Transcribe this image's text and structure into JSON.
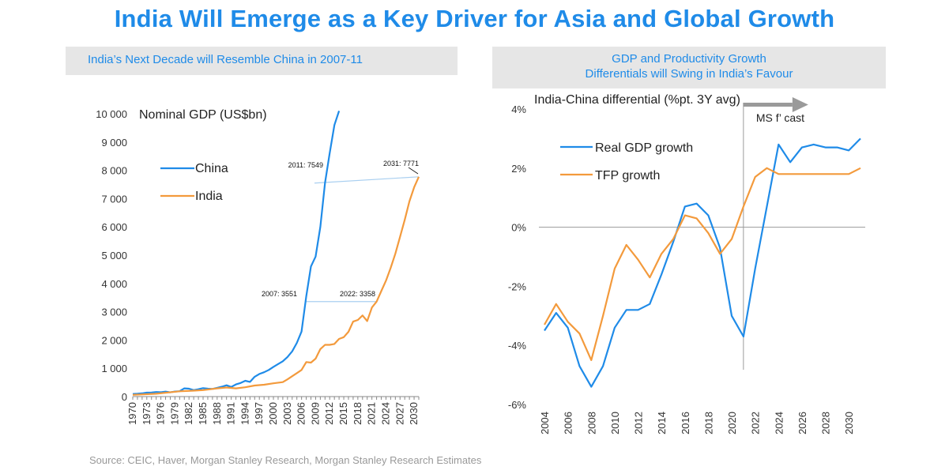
{
  "title": "India Will Emerge as a Key Driver for Asia and Global Growth",
  "left_panel": {
    "header": "India’s Next Decade will Resemble China in 2007-11"
  },
  "right_panel": {
    "header_line1": "GDP and Productivity Growth",
    "header_line2": "Differentials will Swing in India’s Favour"
  },
  "source": "Source: CEIC, Haver, Morgan Stanley Research, Morgan Stanley Research Estimates",
  "colors": {
    "title": "#1f8be8",
    "china_or_gdp": "#1f8be8",
    "india_or_tfp": "#f39a3c",
    "annotation_line": "#a9cff0",
    "axis": "#888888"
  },
  "chart_data": [
    {
      "type": "line",
      "title": "Nominal GDP (US$bn)",
      "xlabel": "",
      "ylabel": "",
      "ylim": [
        0,
        10000
      ],
      "xlim": [
        1970,
        2031
      ],
      "yticks": [
        0,
        1000,
        2000,
        3000,
        4000,
        5000,
        6000,
        7000,
        8000,
        9000,
        10000
      ],
      "ytick_labels": [
        "0",
        "1 000",
        "2 000",
        "3 000",
        "4 000",
        "5 000",
        "6 000",
        "7 000",
        "8 000",
        "9 000",
        "10 000"
      ],
      "xticks": [
        1970,
        1973,
        1976,
        1979,
        1982,
        1985,
        1988,
        1991,
        1994,
        1997,
        2000,
        2003,
        2006,
        2009,
        2012,
        2015,
        2018,
        2021,
        2024,
        2027,
        2030
      ],
      "grid": false,
      "legend_position": "top-left",
      "series": [
        {
          "name": "China",
          "x": [
            1970,
            1971,
            1972,
            1973,
            1974,
            1975,
            1976,
            1977,
            1978,
            1979,
            1980,
            1981,
            1982,
            1983,
            1984,
            1985,
            1986,
            1987,
            1988,
            1989,
            1990,
            1991,
            1992,
            1993,
            1994,
            1995,
            1996,
            1997,
            1998,
            1999,
            2000,
            2001,
            2002,
            2003,
            2004,
            2005,
            2006,
            2007,
            2008,
            2009,
            2010,
            2011,
            2012,
            2013,
            2014
          ],
          "values": [
            92,
            100,
            114,
            139,
            144,
            163,
            154,
            175,
            150,
            180,
            190,
            290,
            280,
            230,
            260,
            300,
            280,
            270,
            310,
            350,
            400,
            340,
            430,
            480,
            560,
            520,
            700,
            800,
            860,
            940,
            1050,
            1150,
            1250,
            1400,
            1600,
            1900,
            2300,
            3551,
            4600,
            4950,
            6000,
            7549,
            8600,
            9600,
            10100
          ]
        },
        {
          "name": "India",
          "x": [
            1970,
            1975,
            1980,
            1983,
            1985,
            1988,
            1990,
            1992,
            1994,
            1996,
            1998,
            2000,
            2002,
            2003,
            2004,
            2005,
            2006,
            2007,
            2008,
            2009,
            2010,
            2011,
            2012,
            2013,
            2014,
            2015,
            2016,
            2017,
            2018,
            2019,
            2020,
            2021,
            2022,
            2023,
            2024,
            2025,
            2026,
            2027,
            2028,
            2029,
            2030,
            2031
          ],
          "values": [
            62,
            100,
            186,
            210,
            230,
            290,
            320,
            290,
            330,
            390,
            420,
            470,
            510,
            610,
            720,
            830,
            940,
            1220,
            1200,
            1340,
            1680,
            1830,
            1830,
            1860,
            2040,
            2100,
            2290,
            2650,
            2710,
            2870,
            2670,
            3150,
            3358,
            3730,
            4100,
            4550,
            5050,
            5650,
            6250,
            6900,
            7400,
            7771
          ]
        }
      ],
      "annotations": [
        {
          "label": "2011: 7549",
          "series": "China",
          "x": 2011,
          "y": 7549
        },
        {
          "label": "2031: 7771",
          "series": "India",
          "x": 2031,
          "y": 7771
        },
        {
          "label": "2007: 3551",
          "series": "China",
          "x": 2007,
          "y": 3551
        },
        {
          "label": "2022: 3358",
          "series": "India",
          "x": 2022,
          "y": 3358
        }
      ]
    },
    {
      "type": "line",
      "title": "India-China differential (%pt. 3Y avg)",
      "xlabel": "",
      "ylabel": "",
      "ylim": [
        -6,
        4
      ],
      "xlim": [
        2004,
        2031
      ],
      "yticks": [
        -6,
        -4,
        -2,
        0,
        2,
        4
      ],
      "ytick_labels": [
        "-6%",
        "-4%",
        "-2%",
        "0%",
        "2%",
        "4%"
      ],
      "xticks": [
        2004,
        2006,
        2008,
        2010,
        2012,
        2014,
        2016,
        2018,
        2020,
        2022,
        2024,
        2026,
        2028,
        2030
      ],
      "grid": false,
      "legend_position": "top-left",
      "forecast": {
        "label": "MS f’ cast",
        "start_x": 2021
      },
      "series": [
        {
          "name": "Real GDP growth",
          "x": [
            2004,
            2005,
            2006,
            2007,
            2008,
            2009,
            2010,
            2011,
            2012,
            2013,
            2014,
            2015,
            2016,
            2017,
            2018,
            2019,
            2020,
            2021,
            2022,
            2023,
            2024,
            2025,
            2026,
            2027,
            2028,
            2029,
            2030,
            2031
          ],
          "values": [
            -3.5,
            -2.9,
            -3.4,
            -4.7,
            -5.4,
            -4.7,
            -3.4,
            -2.8,
            -2.8,
            -2.6,
            -1.6,
            -0.5,
            0.7,
            0.8,
            0.4,
            -0.7,
            -3.0,
            -3.7,
            -1.4,
            0.7,
            2.8,
            2.2,
            2.7,
            2.8,
            2.7,
            2.7,
            2.6,
            3.0
          ]
        },
        {
          "name": "TFP growth",
          "x": [
            2004,
            2005,
            2006,
            2007,
            2008,
            2009,
            2010,
            2011,
            2012,
            2013,
            2014,
            2015,
            2016,
            2017,
            2018,
            2019,
            2020,
            2021,
            2022,
            2023,
            2024,
            2025,
            2026,
            2027,
            2028,
            2029,
            2030,
            2031
          ],
          "values": [
            -3.3,
            -2.6,
            -3.2,
            -3.6,
            -4.5,
            -3.0,
            -1.4,
            -0.6,
            -1.1,
            -1.7,
            -0.9,
            -0.4,
            0.4,
            0.3,
            -0.2,
            -0.9,
            -0.4,
            0.7,
            1.7,
            2.0,
            1.8,
            1.8,
            1.8,
            1.8,
            1.8,
            1.8,
            1.8,
            2.0
          ]
        }
      ]
    }
  ]
}
